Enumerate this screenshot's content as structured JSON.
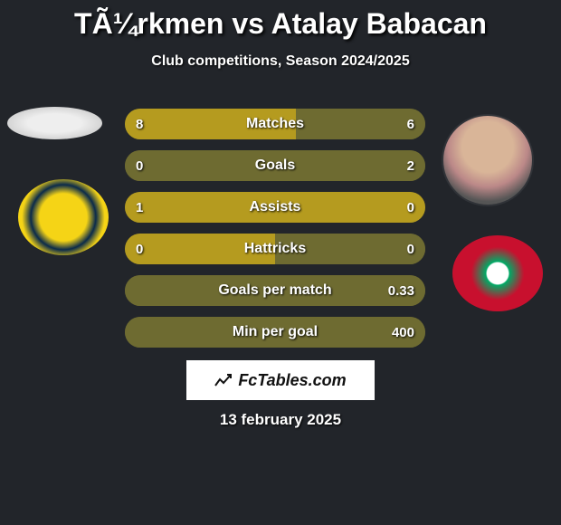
{
  "header": {
    "title": "TÃ¼rkmen vs Atalay Babacan",
    "subtitle": "Club competitions, Season 2024/2025"
  },
  "colors": {
    "left": "#b59b1f",
    "right": "#6e6b31",
    "background": "#22252a"
  },
  "stats": [
    {
      "label": "Matches",
      "left_val": "8",
      "right_val": "6",
      "left_pct": 57,
      "right_pct": 43
    },
    {
      "label": "Goals",
      "left_val": "0",
      "right_val": "2",
      "left_pct": 0,
      "right_pct": 100
    },
    {
      "label": "Assists",
      "left_val": "1",
      "right_val": "0",
      "left_pct": 100,
      "right_pct": 0
    },
    {
      "label": "Hattricks",
      "left_val": "0",
      "right_val": "0",
      "left_pct": 50,
      "right_pct": 50
    },
    {
      "label": "Goals per match",
      "left_val": "",
      "right_val": "0.33",
      "left_pct": 0,
      "right_pct": 100
    },
    {
      "label": "Min per goal",
      "left_val": "",
      "right_val": "400",
      "left_pct": 0,
      "right_pct": 100
    }
  ],
  "branding": {
    "text": "FcTables.com"
  },
  "date": "13 february 2025"
}
